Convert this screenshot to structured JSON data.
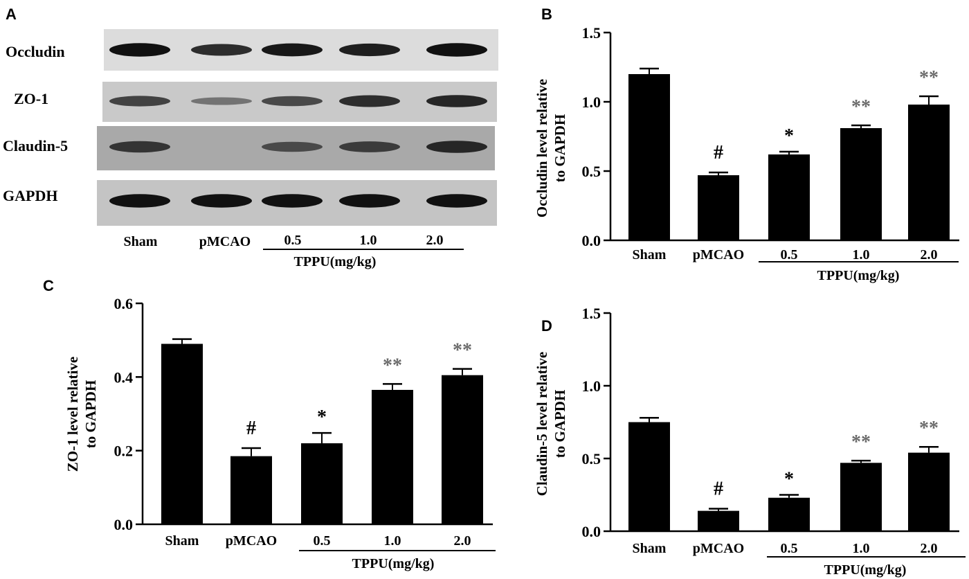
{
  "panels": {
    "a_letter": "A",
    "b_letter": "B",
    "c_letter": "C",
    "d_letter": "D"
  },
  "blot": {
    "rows": [
      "Occludin",
      "ZO-1",
      "Claudin-5",
      "GAPDH"
    ],
    "lanes": [
      "Sham",
      "pMCAO",
      "0.5",
      "1.0",
      "2.0"
    ],
    "group_label": "TPPU(mg/kg)",
    "band_intensity": [
      [
        0.95,
        0.75,
        0.9,
        0.85,
        0.95
      ],
      [
        0.6,
        0.25,
        0.55,
        0.75,
        0.8
      ],
      [
        0.7,
        0.0,
        0.55,
        0.65,
        0.8
      ],
      [
        0.95,
        0.95,
        0.95,
        0.95,
        0.95
      ]
    ]
  },
  "chart_data": [
    {
      "type": "bar",
      "panel": "B",
      "categories": [
        "Sham",
        "pMCAO",
        "0.5",
        "1.0",
        "2.0"
      ],
      "values": [
        1.2,
        0.47,
        0.62,
        0.81,
        0.98
      ],
      "errors": [
        0.04,
        0.02,
        0.02,
        0.02,
        0.06
      ],
      "significance": [
        "",
        "#",
        "*",
        "**",
        "**"
      ],
      "ylabel": [
        "Occludin level relative",
        "to GAPDH"
      ],
      "ylim": [
        0,
        1.5
      ],
      "yticks": [
        "0.0",
        "0.5",
        "1.0",
        "1.5"
      ],
      "group_label": "TPPU(mg/kg)",
      "color": "#000000"
    },
    {
      "type": "bar",
      "panel": "C",
      "categories": [
        "Sham",
        "pMCAO",
        "0.5",
        "1.0",
        "2.0"
      ],
      "values": [
        0.49,
        0.185,
        0.22,
        0.365,
        0.405
      ],
      "errors": [
        0.013,
        0.022,
        0.028,
        0.016,
        0.017
      ],
      "significance": [
        "",
        "#",
        "*",
        "**",
        "**"
      ],
      "ylabel": [
        "ZO-1 level relative",
        "to GAPDH"
      ],
      "ylim": [
        0,
        0.6
      ],
      "yticks": [
        "0.0",
        "0.2",
        "0.4",
        "0.6"
      ],
      "group_label": "TPPU(mg/kg)",
      "color": "#000000"
    },
    {
      "type": "bar",
      "panel": "D",
      "categories": [
        "Sham",
        "pMCAO",
        "0.5",
        "1.0",
        "2.0"
      ],
      "values": [
        0.75,
        0.14,
        0.23,
        0.47,
        0.54
      ],
      "errors": [
        0.03,
        0.015,
        0.02,
        0.015,
        0.04
      ],
      "significance": [
        "",
        "#",
        "*",
        "**",
        "**"
      ],
      "ylabel": [
        "Claudin-5 level relative",
        "to GAPDH"
      ],
      "ylim": [
        0,
        1.5
      ],
      "yticks": [
        "0.0",
        "0.5",
        "1.0",
        "1.5"
      ],
      "group_label": "TPPU(mg/kg)",
      "color": "#000000"
    }
  ]
}
